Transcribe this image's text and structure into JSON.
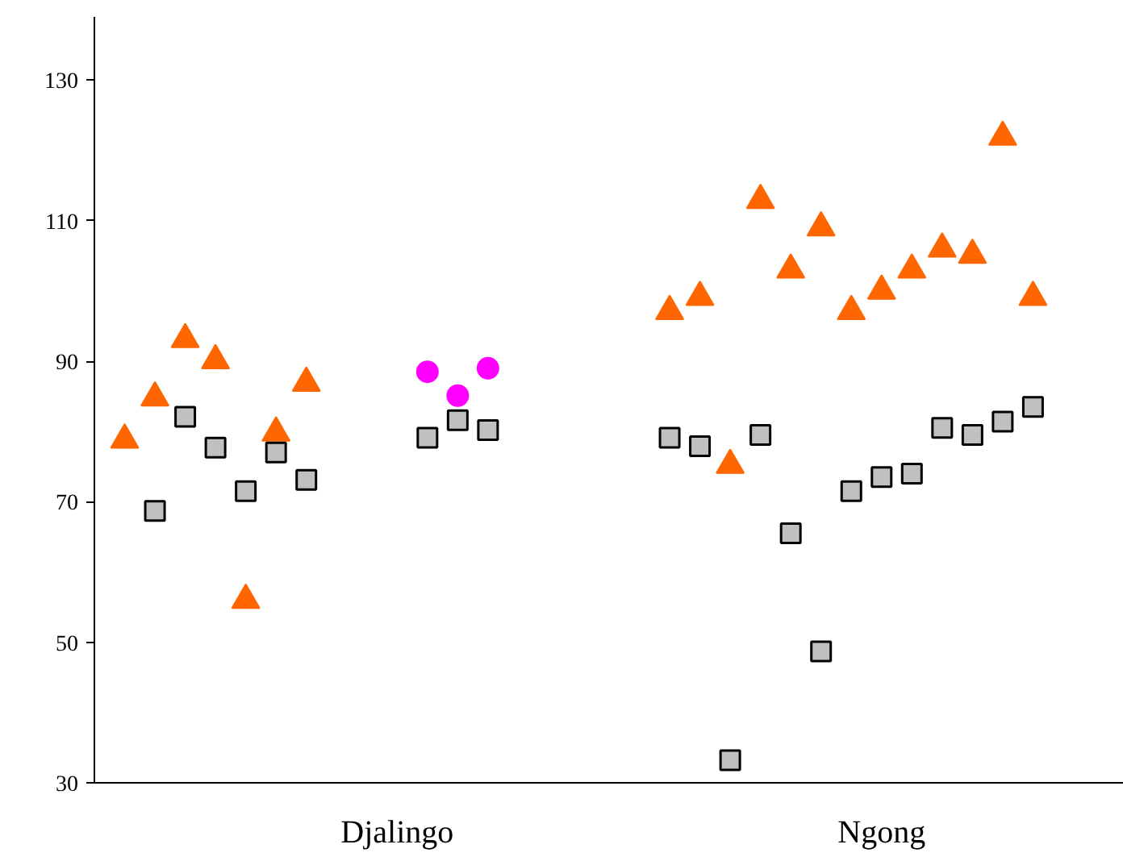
{
  "chart_data": {
    "type": "scatter",
    "ylim": [
      30,
      139
    ],
    "yticks": [
      30,
      50,
      70,
      90,
      110,
      130
    ],
    "grid": false,
    "categories": [
      null,
      null,
      null,
      null,
      null,
      null,
      null,
      null,
      null,
      "Djalingo",
      null,
      null,
      null,
      null,
      null,
      null,
      null,
      null,
      null,
      null,
      null,
      null,
      null,
      null,
      null,
      "Ngong",
      null,
      null,
      null,
      null,
      null,
      null,
      null
    ],
    "series": [
      {
        "color": "#ff6600",
        "marker": "triangle",
        "values": [
          78.8,
          84.8,
          93.1,
          90.1,
          56.0,
          79.8,
          86.9,
          null,
          null,
          null,
          null,
          null,
          null,
          null,
          null,
          null,
          null,
          null,
          97.1,
          99.1,
          75.2,
          112.9,
          103.0,
          109.0,
          97.1,
          100.0,
          103.0,
          106.0,
          105.1,
          121.9,
          99.1,
          null,
          null
        ]
      },
      {
        "color": "#c0c0c0",
        "marker": "square",
        "values": [
          null,
          68.7,
          82.1,
          77.7,
          71.5,
          77.0,
          73.1,
          null,
          null,
          null,
          79.1,
          81.6,
          80.2,
          null,
          null,
          null,
          null,
          null,
          79.1,
          77.9,
          33.2,
          79.5,
          65.5,
          48.7,
          71.5,
          73.5,
          74.0,
          80.5,
          79.5,
          81.4,
          83.5,
          null,
          null
        ]
      },
      {
        "color": "#ff00ff",
        "marker": "circle",
        "values": [
          null,
          null,
          null,
          null,
          null,
          null,
          null,
          null,
          null,
          null,
          88.5,
          85.1,
          89.0,
          null,
          null,
          null,
          null,
          null,
          null,
          null,
          null,
          null,
          null,
          null,
          null,
          null,
          null,
          null,
          null,
          null,
          null,
          null,
          null
        ]
      }
    ]
  }
}
